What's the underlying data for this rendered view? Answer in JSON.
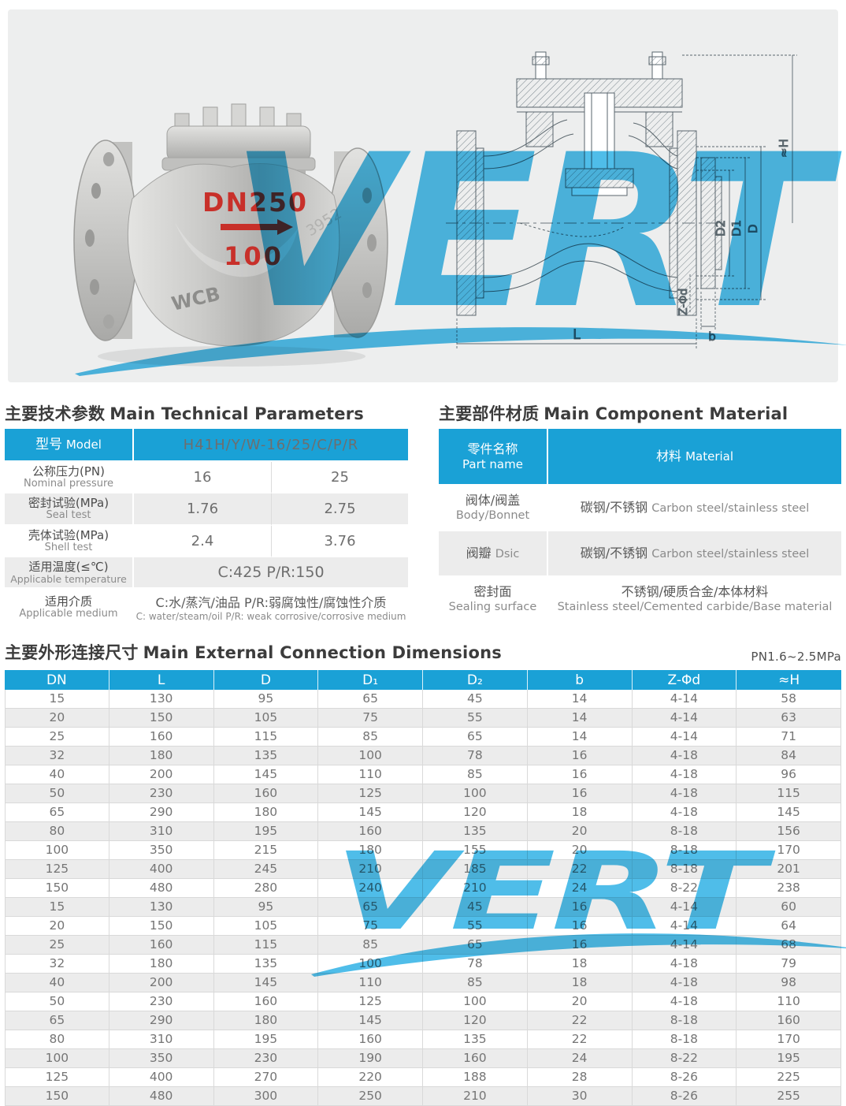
{
  "watermark": {
    "text": "VERT",
    "color": "#4fbde9"
  },
  "hero": {
    "photo": {
      "size_mark": "DN250",
      "size_mark_sub": "100",
      "body_material_mark": "WCB",
      "casting_number": "3952"
    },
    "drawing": {
      "dim_h": "≈H",
      "dim_d2": "D2",
      "dim_d1": "D1",
      "dim_d": "D",
      "dim_l": "L",
      "dim_b": "b",
      "dim_z": "Z-Φd"
    }
  },
  "tech_params": {
    "title_zh": "主要技术参数",
    "title_en": "Main Technical Parameters",
    "model_label_zh": "型号",
    "model_label_en": "Model",
    "model_value": "H41H/Y/W-16/25/C/P/R",
    "rows": [
      {
        "zh": "公称压力(PN)",
        "en": "Nominal pressure",
        "v1": "16",
        "v2": "25"
      },
      {
        "zh": "密封试验(MPa)",
        "en": "Seal test",
        "v1": "1.76",
        "v2": "2.75"
      },
      {
        "zh": "壳体试验(MPa)",
        "en": "Shell test",
        "v1": "2.4",
        "v2": "3.76"
      },
      {
        "zh": "适用温度(≤℃)",
        "en": "Applicable temperature",
        "span": "C:425  P/R:150"
      },
      {
        "zh": "适用介质",
        "en": "Applicable medium",
        "span_zh": "C:水/蒸汽/油品  P/R:弱腐蚀性/腐蚀性介质",
        "span_en": "C: water/steam/oil P/R: weak corrosive/corrosive medium"
      }
    ]
  },
  "materials": {
    "title_zh": "主要部件材质",
    "title_en": "Main Component Material",
    "col1_zh": "零件名称",
    "col1_en": "Part name",
    "col2_zh": "材料",
    "col2_en": "Material",
    "rows": [
      {
        "part_zh": "阀体/阀盖",
        "part_en": "Body/Bonnet",
        "mat_zh": "碳钢/不锈钢",
        "mat_en": "Carbon steel/stainless steel"
      },
      {
        "part_zh": "阀瓣",
        "part_en": "Dsic",
        "mat_zh": "碳钢/不锈钢",
        "mat_en": "Carbon steel/stainless steel"
      },
      {
        "part_zh": "密封面",
        "part_en": "Sealing surface",
        "mat_zh": "不锈钢/硬质合金/本体材料",
        "mat_en": "Stainless steel/Cemented carbide/Base material"
      }
    ]
  },
  "dimensions": {
    "title_zh": "主要外形连接尺寸",
    "title_en": "Main External Connection Dimensions",
    "pn_note": "PN1.6~2.5MPa",
    "columns": [
      "DN",
      "L",
      "D",
      "D₁",
      "D₂",
      "b",
      "Z-Φd",
      "≈H"
    ],
    "rows": [
      [
        "15",
        "130",
        "95",
        "65",
        "45",
        "14",
        "4-14",
        "58"
      ],
      [
        "20",
        "150",
        "105",
        "75",
        "55",
        "14",
        "4-14",
        "63"
      ],
      [
        "25",
        "160",
        "115",
        "85",
        "65",
        "14",
        "4-14",
        "71"
      ],
      [
        "32",
        "180",
        "135",
        "100",
        "78",
        "16",
        "4-18",
        "84"
      ],
      [
        "40",
        "200",
        "145",
        "110",
        "85",
        "16",
        "4-18",
        "96"
      ],
      [
        "50",
        "230",
        "160",
        "125",
        "100",
        "16",
        "4-18",
        "115"
      ],
      [
        "65",
        "290",
        "180",
        "145",
        "120",
        "18",
        "4-18",
        "145"
      ],
      [
        "80",
        "310",
        "195",
        "160",
        "135",
        "20",
        "8-18",
        "156"
      ],
      [
        "100",
        "350",
        "215",
        "180",
        "155",
        "20",
        "8-18",
        "170"
      ],
      [
        "125",
        "400",
        "245",
        "210",
        "185",
        "22",
        "8-18",
        "201"
      ],
      [
        "150",
        "480",
        "280",
        "240",
        "210",
        "24",
        "8-22",
        "238"
      ],
      [
        "15",
        "130",
        "95",
        "65",
        "45",
        "16",
        "4-14",
        "60"
      ],
      [
        "20",
        "150",
        "105",
        "75",
        "55",
        "16",
        "4-14",
        "64"
      ],
      [
        "25",
        "160",
        "115",
        "85",
        "65",
        "16",
        "4-14",
        "68"
      ],
      [
        "32",
        "180",
        "135",
        "100",
        "78",
        "18",
        "4-18",
        "79"
      ],
      [
        "40",
        "200",
        "145",
        "110",
        "85",
        "18",
        "4-18",
        "98"
      ],
      [
        "50",
        "230",
        "160",
        "125",
        "100",
        "20",
        "4-18",
        "110"
      ],
      [
        "65",
        "290",
        "180",
        "145",
        "120",
        "22",
        "8-18",
        "160"
      ],
      [
        "80",
        "310",
        "195",
        "160",
        "135",
        "22",
        "8-18",
        "170"
      ],
      [
        "100",
        "350",
        "230",
        "190",
        "160",
        "24",
        "8-22",
        "195"
      ],
      [
        "125",
        "400",
        "270",
        "220",
        "188",
        "28",
        "8-26",
        "225"
      ],
      [
        "150",
        "480",
        "300",
        "250",
        "210",
        "30",
        "8-26",
        "255"
      ]
    ]
  },
  "colors": {
    "accent_blue": "#1aa1d6",
    "row_alt": "#ececec",
    "watermark_blue": "#4fbde9",
    "photo_mark_red": "#c8302a"
  }
}
